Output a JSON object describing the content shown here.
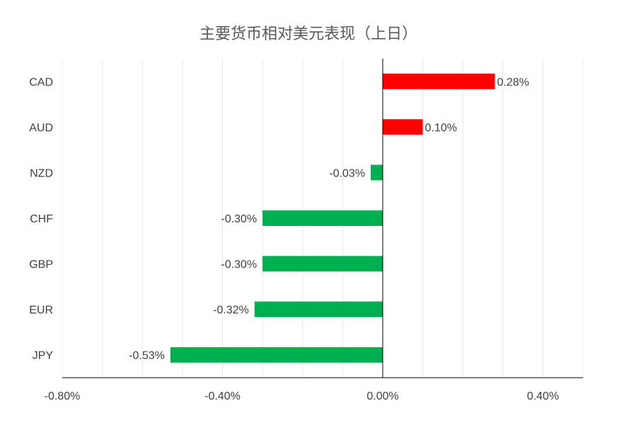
{
  "chart_data": {
    "type": "bar",
    "orientation": "horizontal",
    "title": "主要货币相对美元表现（上日）",
    "xlabel": "",
    "ylabel": "",
    "categories": [
      "CAD",
      "AUD",
      "NZD",
      "CHF",
      "GBP",
      "EUR",
      "JPY"
    ],
    "values": [
      0.28,
      0.1,
      -0.03,
      -0.3,
      -0.3,
      -0.32,
      -0.53
    ],
    "value_labels": [
      "0.28%",
      "0.10%",
      "-0.03%",
      "-0.30%",
      "-0.30%",
      "-0.32%",
      "-0.53%"
    ],
    "xlim": [
      -0.8,
      0.5
    ],
    "xticks": [
      -0.8,
      -0.4,
      0.0,
      0.4
    ],
    "xtick_labels": [
      "-0.80%",
      "-0.40%",
      "0.00%",
      "0.40%"
    ],
    "grid": "vertical",
    "legend": "none",
    "colors": {
      "positive": "#ff0000",
      "negative": "#00b050",
      "grid": "#e8e8e8",
      "axis": "#000000",
      "text": "#404040"
    }
  }
}
